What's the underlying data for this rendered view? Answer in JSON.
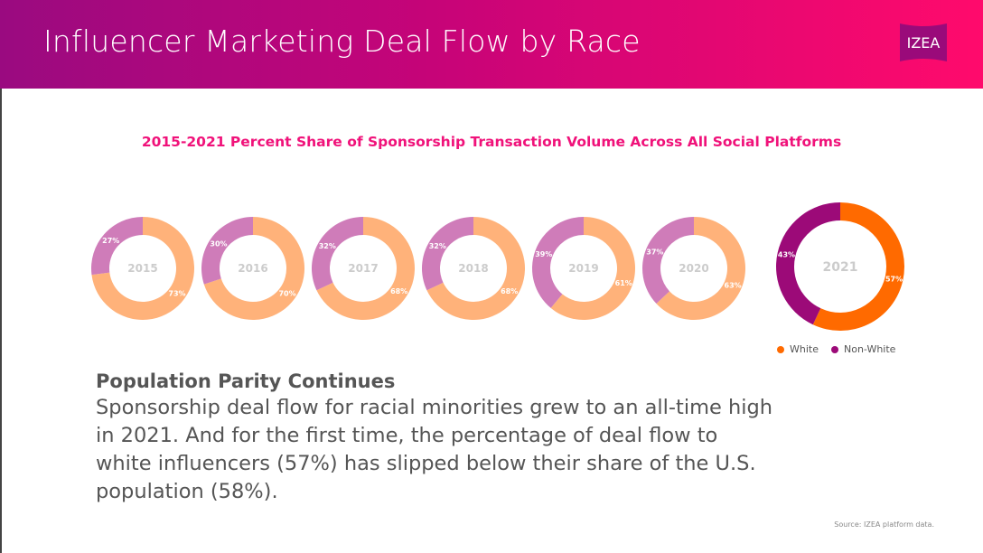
{
  "header": {
    "title": "Influencer Marketing Deal Flow by Race",
    "logo_text": "IZEA"
  },
  "chart_data": {
    "type": "pie",
    "title": "2015-2021 Percent Share of Sponsorship Transaction Volume Across All Social Platforms",
    "categories": [
      "2015",
      "2016",
      "2017",
      "2018",
      "2019",
      "2020",
      "2021"
    ],
    "series": [
      {
        "name": "White",
        "values": [
          73,
          70,
          68,
          68,
          61,
          63,
          57
        ]
      },
      {
        "name": "Non-White",
        "values": [
          27,
          30,
          32,
          32,
          39,
          37,
          43
        ]
      }
    ],
    "legend": "bottom-right",
    "colors": {
      "white_past": "#ffb27a",
      "nonwhite_past": "#cf7cb9",
      "white_2021": "#ff6a00",
      "nonwhite_2021": "#9c0a78",
      "center_label": "#cccccc"
    }
  },
  "legend": [
    {
      "label": "White",
      "color": "#ff6a00"
    },
    {
      "label": "Non-White",
      "color": "#9c0a78"
    }
  ],
  "text": {
    "heading": "Population Parity Continues",
    "body": "Sponsorship deal flow for racial minorities grew to an all-time high in 2021. And for the first time, the percentage of deal flow to white influencers (57%) has slipped below their share of the U.S. population (58%).",
    "source": "Source: IZEA platform data."
  }
}
